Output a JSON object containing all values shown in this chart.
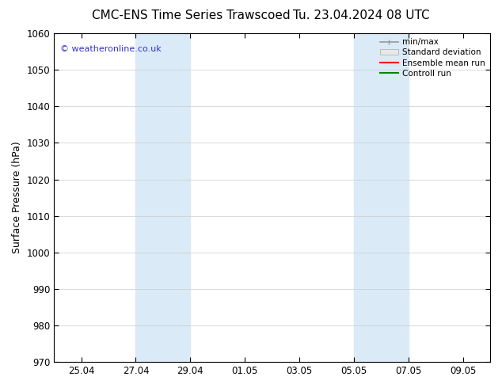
{
  "title_left": "CMC-ENS Time Series Trawscoed",
  "title_right": "Tu. 23.04.2024 08 UTC",
  "ylabel": "Surface Pressure (hPa)",
  "ylim": [
    970,
    1060
  ],
  "yticks": [
    970,
    980,
    990,
    1000,
    1010,
    1020,
    1030,
    1040,
    1050,
    1060
  ],
  "xtick_labels": [
    "25.04",
    "27.04",
    "29.04",
    "01.05",
    "03.05",
    "05.05",
    "07.05",
    "09.05"
  ],
  "shade_color": "#daeaf7",
  "watermark": "© weatheronline.co.uk",
  "watermark_color": "#3333cc",
  "legend_labels": [
    "min/max",
    "Standard deviation",
    "Ensemble mean run",
    "Controll run"
  ],
  "legend_line_colors": [
    "#999999",
    "#cccccc",
    "#ff0000",
    "#008800"
  ],
  "background_color": "#ffffff",
  "title_fontsize": 11,
  "label_fontsize": 9,
  "tick_fontsize": 8.5
}
